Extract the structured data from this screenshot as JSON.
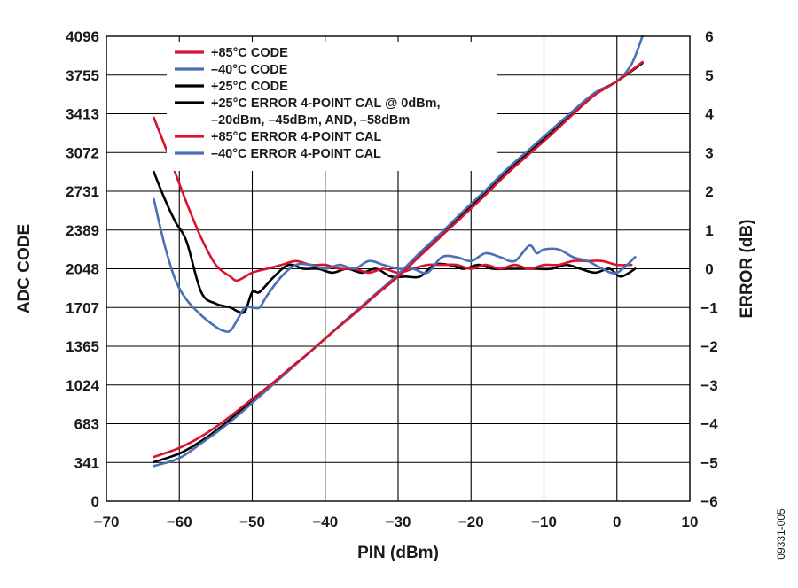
{
  "figure_id": "09331-005",
  "chart_data": {
    "type": "line",
    "xlabel": "PIN (dBm)",
    "ylabel_left": "ADC CODE",
    "ylabel_right": "ERROR (dB)",
    "xlim": [
      -70,
      10
    ],
    "ylim_left": [
      0,
      4096
    ],
    "ylim_right": [
      -6,
      6
    ],
    "x_ticks": [
      "−70",
      "−60",
      "−50",
      "−40",
      "−30",
      "−20",
      "−10",
      "0",
      "10"
    ],
    "y_left_ticks": [
      "0",
      "341",
      "683",
      "1024",
      "1365",
      "1707",
      "2048",
      "2389",
      "2731",
      "3072",
      "3413",
      "3755",
      "4096"
    ],
    "y_right_ticks": [
      "−6",
      "−5",
      "−4",
      "−3",
      "−2",
      "−1",
      "0",
      "1",
      "2",
      "3",
      "4",
      "5",
      "6"
    ],
    "grid": true,
    "legend_position": "top-left",
    "legend": [
      {
        "label": "+85°C CODE",
        "color": "#d7132f"
      },
      {
        "label": "–40°C CODE",
        "color": "#4a6fb5"
      },
      {
        "label": "+25°C CODE",
        "color": "#000000"
      },
      {
        "label": "+25°C ERROR 4-POINT CAL @ 0dBm,",
        "label2": "–20dBm, –45dBm, AND, –58dBm",
        "color": "#000000"
      },
      {
        "label": "+85°C ERROR 4-POINT CAL",
        "color": "#d7132f"
      },
      {
        "label": "–40°C ERROR 4-POINT CAL",
        "color": "#4a6fb5"
      }
    ],
    "series": [
      {
        "name": "+85°C CODE",
        "axis": "left",
        "color": "#d7132f",
        "x": [
          -63.5,
          -60,
          -57,
          -54,
          -51,
          -48,
          -45,
          -42,
          -39,
          -36,
          -33,
          -30,
          -27,
          -24,
          -21,
          -18,
          -15,
          -12,
          -9,
          -6,
          -3,
          0,
          3.5
        ],
        "y": [
          390,
          470,
          570,
          700,
          850,
          1000,
          1160,
          1320,
          1490,
          1650,
          1820,
          1980,
          2160,
          2340,
          2520,
          2700,
          2890,
          3060,
          3230,
          3410,
          3580,
          3700,
          3870
        ]
      },
      {
        "name": "–40°C CODE",
        "axis": "left",
        "color": "#4a6fb5",
        "x": [
          -63.5,
          -60,
          -57,
          -54,
          -51,
          -48,
          -45,
          -42,
          -39,
          -36,
          -33,
          -30,
          -27,
          -24,
          -21,
          -18,
          -15,
          -12,
          -9,
          -6,
          -3,
          0,
          2,
          3.5
        ],
        "y": [
          310,
          380,
          510,
          650,
          810,
          980,
          1150,
          1320,
          1490,
          1660,
          1830,
          2000,
          2190,
          2370,
          2560,
          2740,
          2930,
          3100,
          3270,
          3440,
          3600,
          3700,
          3850,
          4096
        ]
      },
      {
        "name": "+25°C CODE",
        "axis": "left",
        "color": "#000000",
        "x": [
          -63.5,
          -60,
          -57,
          -54,
          -51,
          -48,
          -45,
          -42,
          -39,
          -36,
          -33,
          -30,
          -27,
          -24,
          -21,
          -18,
          -15,
          -12,
          -9,
          -6,
          -3,
          0,
          3.5
        ],
        "y": [
          345,
          420,
          530,
          670,
          830,
          990,
          1160,
          1320,
          1490,
          1660,
          1820,
          1980,
          2170,
          2350,
          2540,
          2720,
          2910,
          3080,
          3250,
          3420,
          3590,
          3700,
          3860
        ]
      },
      {
        "name": "+25°C ERROR 4-POINT CAL @ 0dBm, –20dBm, –45dBm, AND, –58dBm",
        "axis": "right",
        "color": "#000000",
        "x": [
          -63.5,
          -62,
          -60.5,
          -59,
          -57,
          -55,
          -53,
          -52,
          -51,
          -50,
          -49,
          -47,
          -45,
          -43,
          -41,
          -39,
          -37,
          -35,
          -33,
          -31,
          -29,
          -27,
          -25,
          -23,
          -21,
          -19,
          -17,
          -15,
          -13,
          -11,
          -9,
          -7,
          -5,
          -3,
          -1,
          0.5,
          2.5
        ],
        "y": [
          2.5,
          1.8,
          1.2,
          0.7,
          -0.6,
          -0.9,
          -1.0,
          -1.1,
          -1.1,
          -0.6,
          -0.6,
          -0.2,
          0.1,
          0.0,
          0.0,
          -0.1,
          0.0,
          -0.1,
          0.0,
          -0.2,
          -0.2,
          -0.2,
          0.1,
          0.1,
          0.0,
          0.1,
          0.0,
          0.0,
          0.0,
          0.0,
          0.0,
          0.1,
          0.0,
          -0.1,
          0.0,
          -0.2,
          0.0
        ]
      },
      {
        "name": "+85°C ERROR 4-POINT CAL",
        "axis": "right",
        "color": "#d7132f",
        "x": [
          -63.5,
          -61,
          -59,
          -57,
          -55,
          -53,
          -52,
          -50,
          -48,
          -46,
          -44,
          -42,
          -40,
          -38,
          -36,
          -34,
          -32,
          -30,
          -28,
          -26,
          -24,
          -22,
          -20,
          -18,
          -16,
          -14,
          -12,
          -10,
          -8,
          -6,
          -4,
          -2,
          0,
          2
        ],
        "y": [
          3.9,
          2.7,
          1.7,
          0.8,
          0.1,
          -0.2,
          -0.3,
          -0.1,
          0.0,
          0.1,
          0.2,
          0.1,
          0.1,
          0.0,
          0.0,
          -0.1,
          0.0,
          -0.1,
          0.0,
          0.1,
          0.1,
          0.1,
          0.0,
          0.1,
          0.0,
          0.1,
          0.0,
          0.1,
          0.1,
          0.2,
          0.2,
          0.2,
          0.1,
          0.1
        ]
      },
      {
        "name": "–40°C ERROR 4-POINT CAL",
        "axis": "right",
        "color": "#4a6fb5",
        "x": [
          -63.5,
          -62,
          -60.5,
          -59,
          -57,
          -55,
          -54,
          -53,
          -52,
          -51,
          -50,
          -49,
          -48,
          -46,
          -44,
          -42,
          -40,
          -38,
          -36,
          -34,
          -32,
          -30,
          -28,
          -26,
          -24,
          -22,
          -20,
          -18,
          -16,
          -14,
          -12,
          -11,
          -10,
          -8,
          -6,
          -4,
          -2,
          0,
          2.5
        ],
        "y": [
          1.8,
          0.6,
          -0.3,
          -0.8,
          -1.2,
          -1.5,
          -1.6,
          -1.6,
          -1.3,
          -1.0,
          -1.0,
          -1.0,
          -0.7,
          -0.2,
          0.1,
          0.1,
          0.0,
          0.1,
          0.0,
          0.2,
          0.1,
          0.0,
          0.0,
          -0.1,
          0.3,
          0.3,
          0.2,
          0.4,
          0.3,
          0.2,
          0.6,
          0.4,
          0.5,
          0.5,
          0.3,
          0.2,
          0.0,
          -0.1,
          0.3
        ]
      }
    ]
  }
}
